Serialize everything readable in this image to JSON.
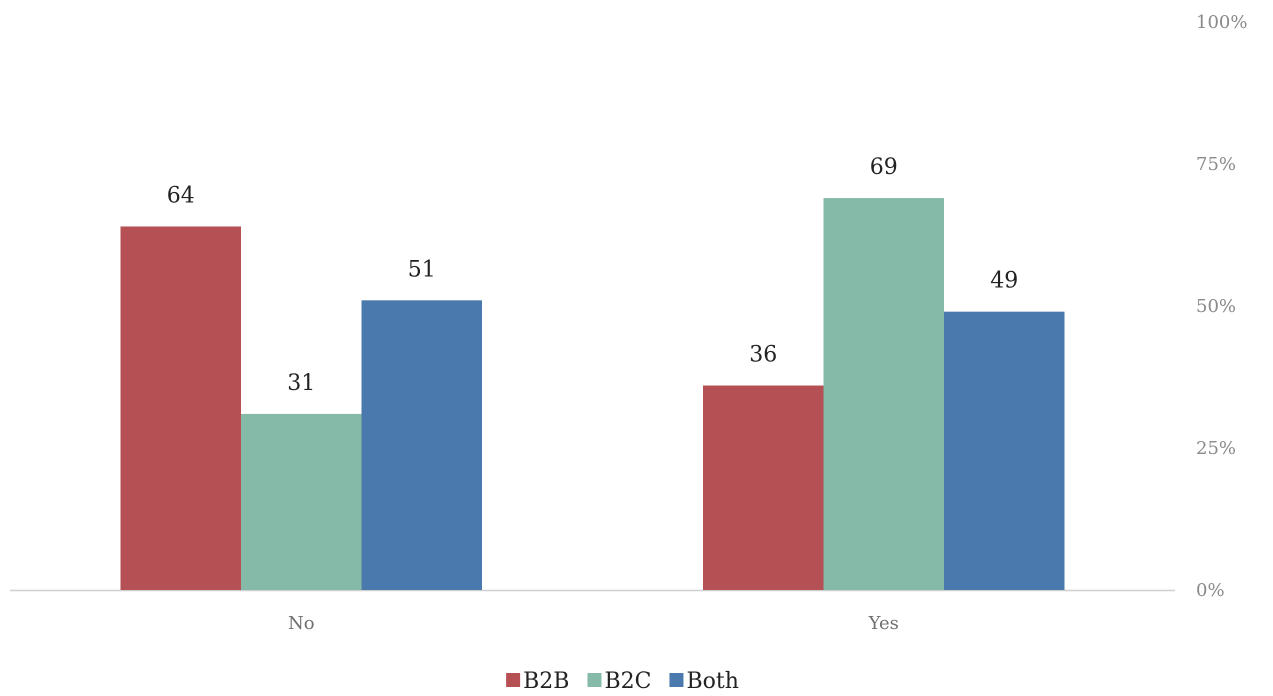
{
  "chart_data": {
    "type": "bar",
    "categories": [
      "No",
      "Yes"
    ],
    "series": [
      {
        "name": "B2B",
        "color": "#b55054",
        "values": [
          64,
          36
        ]
      },
      {
        "name": "B2C",
        "color": "#85b9a8",
        "values": [
          31,
          69
        ]
      },
      {
        "name": "Both",
        "color": "#4a7aad",
        "values": [
          51,
          49
        ]
      }
    ],
    "ylim": [
      0,
      100
    ],
    "yticks": [
      {
        "value": 0,
        "label": "0%"
      },
      {
        "value": 25,
        "label": "25%"
      },
      {
        "value": 50,
        "label": "50%"
      },
      {
        "value": 75,
        "label": "75%"
      },
      {
        "value": 100,
        "label": "100%"
      }
    ],
    "grid": false,
    "legend": "bottom"
  }
}
